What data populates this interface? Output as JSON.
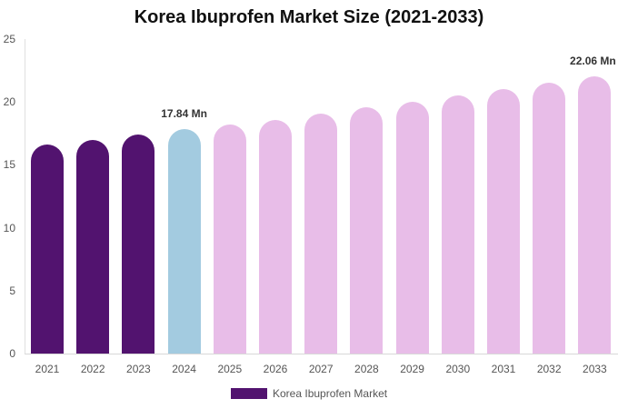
{
  "chart_data": {
    "type": "bar",
    "title": "Korea Ibuprofen Market Size (2021-2033)",
    "xlabel": "",
    "ylabel": "",
    "ylim": [
      0,
      25
    ],
    "yticks": [
      "0",
      "5",
      "10",
      "15",
      "20",
      "25"
    ],
    "grid": false,
    "legend_position": "bottom",
    "categories": [
      "2021",
      "2022",
      "2023",
      "2024",
      "2025",
      "2026",
      "2027",
      "2028",
      "2029",
      "2030",
      "2031",
      "2032",
      "2033"
    ],
    "series": [
      {
        "name": "Korea Ibuprofen Market",
        "values": [
          16.6,
          17.0,
          17.4,
          17.84,
          18.2,
          18.6,
          19.1,
          19.6,
          20.0,
          20.5,
          21.0,
          21.5,
          22.06
        ]
      }
    ],
    "bar_colors": [
      "#52136f",
      "#52136f",
      "#52136f",
      "#a3cbe0",
      "#e8bde8",
      "#e8bde8",
      "#e8bde8",
      "#e8bde8",
      "#e8bde8",
      "#e8bde8",
      "#e8bde8",
      "#e8bde8",
      "#e8bde8"
    ],
    "annotations": [
      {
        "category": "2024",
        "text": "17.84 Mn"
      },
      {
        "category": "2033",
        "text": "22.06 Mn"
      }
    ]
  },
  "legend": {
    "label": "Korea Ibuprofen Market",
    "color": "#52136f"
  }
}
